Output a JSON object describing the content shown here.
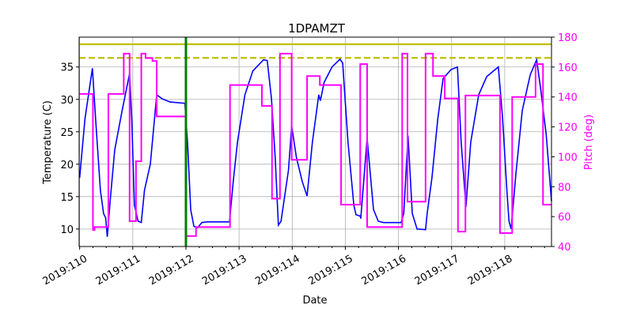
{
  "chart_data": {
    "type": "line",
    "title": "1DPAMZT",
    "xlabel": "Date",
    "ylabel": "Temperature (C)",
    "y2label": "Pitch (deg)",
    "xlim": [
      109.99,
      118.88
    ],
    "ylim": [
      7.3,
      39.6
    ],
    "y2lim": [
      40,
      180
    ],
    "grid": true,
    "x_ticks": [
      {
        "v": 110,
        "label": "2019:110"
      },
      {
        "v": 111,
        "label": "2019:111"
      },
      {
        "v": 112,
        "label": "2019:112"
      },
      {
        "v": 113,
        "label": "2019:113"
      },
      {
        "v": 114,
        "label": "2019:114"
      },
      {
        "v": 115,
        "label": "2019:115"
      },
      {
        "v": 116,
        "label": "2019:116"
      },
      {
        "v": 117,
        "label": "2019:117"
      },
      {
        "v": 118,
        "label": "2019:118"
      }
    ],
    "y_ticks": [
      10,
      15,
      20,
      25,
      30,
      35
    ],
    "y2_ticks": [
      40,
      60,
      80,
      100,
      120,
      140,
      160,
      180
    ],
    "colors": {
      "temperature": "#0000ff",
      "pitch": "#ff00ff",
      "limit": "#bfbf00",
      "marker": "#008000"
    },
    "hlines": [
      {
        "temp": 38.5,
        "style": "solid"
      },
      {
        "temp": 36.4,
        "style": "dashed"
      }
    ],
    "vline_day": 112.0,
    "temperature": [
      [
        110.0,
        17.9
      ],
      [
        110.1,
        27
      ],
      [
        110.24,
        34.8
      ],
      [
        110.3,
        27
      ],
      [
        110.39,
        16
      ],
      [
        110.45,
        12.4
      ],
      [
        110.49,
        11.7
      ],
      [
        110.52,
        8.8
      ],
      [
        110.58,
        14.9
      ],
      [
        110.66,
        22.2
      ],
      [
        110.8,
        28.3
      ],
      [
        110.94,
        34
      ],
      [
        110.98,
        27
      ],
      [
        111.03,
        13.7
      ],
      [
        111.1,
        11.2
      ],
      [
        111.16,
        11
      ],
      [
        111.22,
        16
      ],
      [
        111.33,
        20
      ],
      [
        111.45,
        30.7
      ],
      [
        111.55,
        30.1
      ],
      [
        111.7,
        29.6
      ],
      [
        111.98,
        29.4
      ],
      [
        112.03,
        23.4
      ],
      [
        112.09,
        13
      ],
      [
        112.15,
        10.4
      ],
      [
        112.22,
        10.2
      ],
      [
        112.3,
        11
      ],
      [
        112.4,
        11.1
      ],
      [
        112.82,
        11.1
      ],
      [
        112.89,
        17.3
      ],
      [
        112.97,
        23.4
      ],
      [
        113.11,
        30.7
      ],
      [
        113.26,
        34.4
      ],
      [
        113.46,
        36.1
      ],
      [
        113.53,
        36
      ],
      [
        113.61,
        30.1
      ],
      [
        113.68,
        21
      ],
      [
        113.74,
        10.6
      ],
      [
        113.79,
        11.2
      ],
      [
        113.93,
        19.1
      ],
      [
        113.99,
        25.9
      ],
      [
        114.08,
        21
      ],
      [
        114.19,
        17.3
      ],
      [
        114.28,
        15.1
      ],
      [
        114.38,
        23.4
      ],
      [
        114.5,
        30.7
      ],
      [
        114.53,
        29.8
      ],
      [
        114.6,
        32.6
      ],
      [
        114.75,
        35
      ],
      [
        114.9,
        36.2
      ],
      [
        114.95,
        35.6
      ],
      [
        115.05,
        23.4
      ],
      [
        115.16,
        13.7
      ],
      [
        115.2,
        12.2
      ],
      [
        115.28,
        12
      ],
      [
        115.29,
        11.6
      ],
      [
        115.41,
        24
      ],
      [
        115.53,
        13
      ],
      [
        115.62,
        11.2
      ],
      [
        115.72,
        11
      ],
      [
        116.05,
        11
      ],
      [
        116.1,
        12.4
      ],
      [
        116.18,
        24.4
      ],
      [
        116.26,
        12.4
      ],
      [
        116.35,
        10
      ],
      [
        116.51,
        9.9
      ],
      [
        116.54,
        12.4
      ],
      [
        116.63,
        17.9
      ],
      [
        116.74,
        27
      ],
      [
        116.84,
        33.2
      ],
      [
        116.99,
        34.6
      ],
      [
        117.11,
        35
      ],
      [
        117.18,
        23.4
      ],
      [
        117.27,
        13.4
      ],
      [
        117.36,
        23.4
      ],
      [
        117.51,
        30.7
      ],
      [
        117.66,
        33.5
      ],
      [
        117.88,
        35
      ],
      [
        117.96,
        27
      ],
      [
        118.04,
        16
      ],
      [
        118.08,
        11.2
      ],
      [
        118.12,
        10
      ],
      [
        118.21,
        18.5
      ],
      [
        118.33,
        28.3
      ],
      [
        118.48,
        33.8
      ],
      [
        118.6,
        36.1
      ],
      [
        118.67,
        32
      ],
      [
        118.78,
        24.6
      ],
      [
        118.88,
        14.3
      ]
    ],
    "pitch_steps": [
      [
        110.0,
        142
      ],
      [
        110.25,
        51
      ],
      [
        110.28,
        53
      ],
      [
        110.54,
        142
      ],
      [
        110.83,
        169
      ],
      [
        110.94,
        57
      ],
      [
        111.06,
        97
      ],
      [
        111.16,
        169
      ],
      [
        111.24,
        166
      ],
      [
        111.37,
        164
      ],
      [
        111.45,
        127
      ],
      [
        112.0,
        47
      ],
      [
        112.19,
        53
      ],
      [
        112.83,
        148
      ],
      [
        113.43,
        134
      ],
      [
        113.62,
        72
      ],
      [
        113.77,
        169
      ],
      [
        113.99,
        98
      ],
      [
        114.28,
        154
      ],
      [
        114.52,
        148
      ],
      [
        114.92,
        68
      ],
      [
        115.28,
        162
      ],
      [
        115.41,
        53
      ],
      [
        116.07,
        169
      ],
      [
        116.17,
        70
      ],
      [
        116.51,
        169
      ],
      [
        116.65,
        154
      ],
      [
        116.87,
        139
      ],
      [
        117.12,
        50
      ],
      [
        117.26,
        141
      ],
      [
        117.91,
        49
      ],
      [
        118.14,
        140
      ],
      [
        118.58,
        162
      ],
      [
        118.72,
        68
      ],
      [
        118.88,
        68
      ]
    ]
  }
}
